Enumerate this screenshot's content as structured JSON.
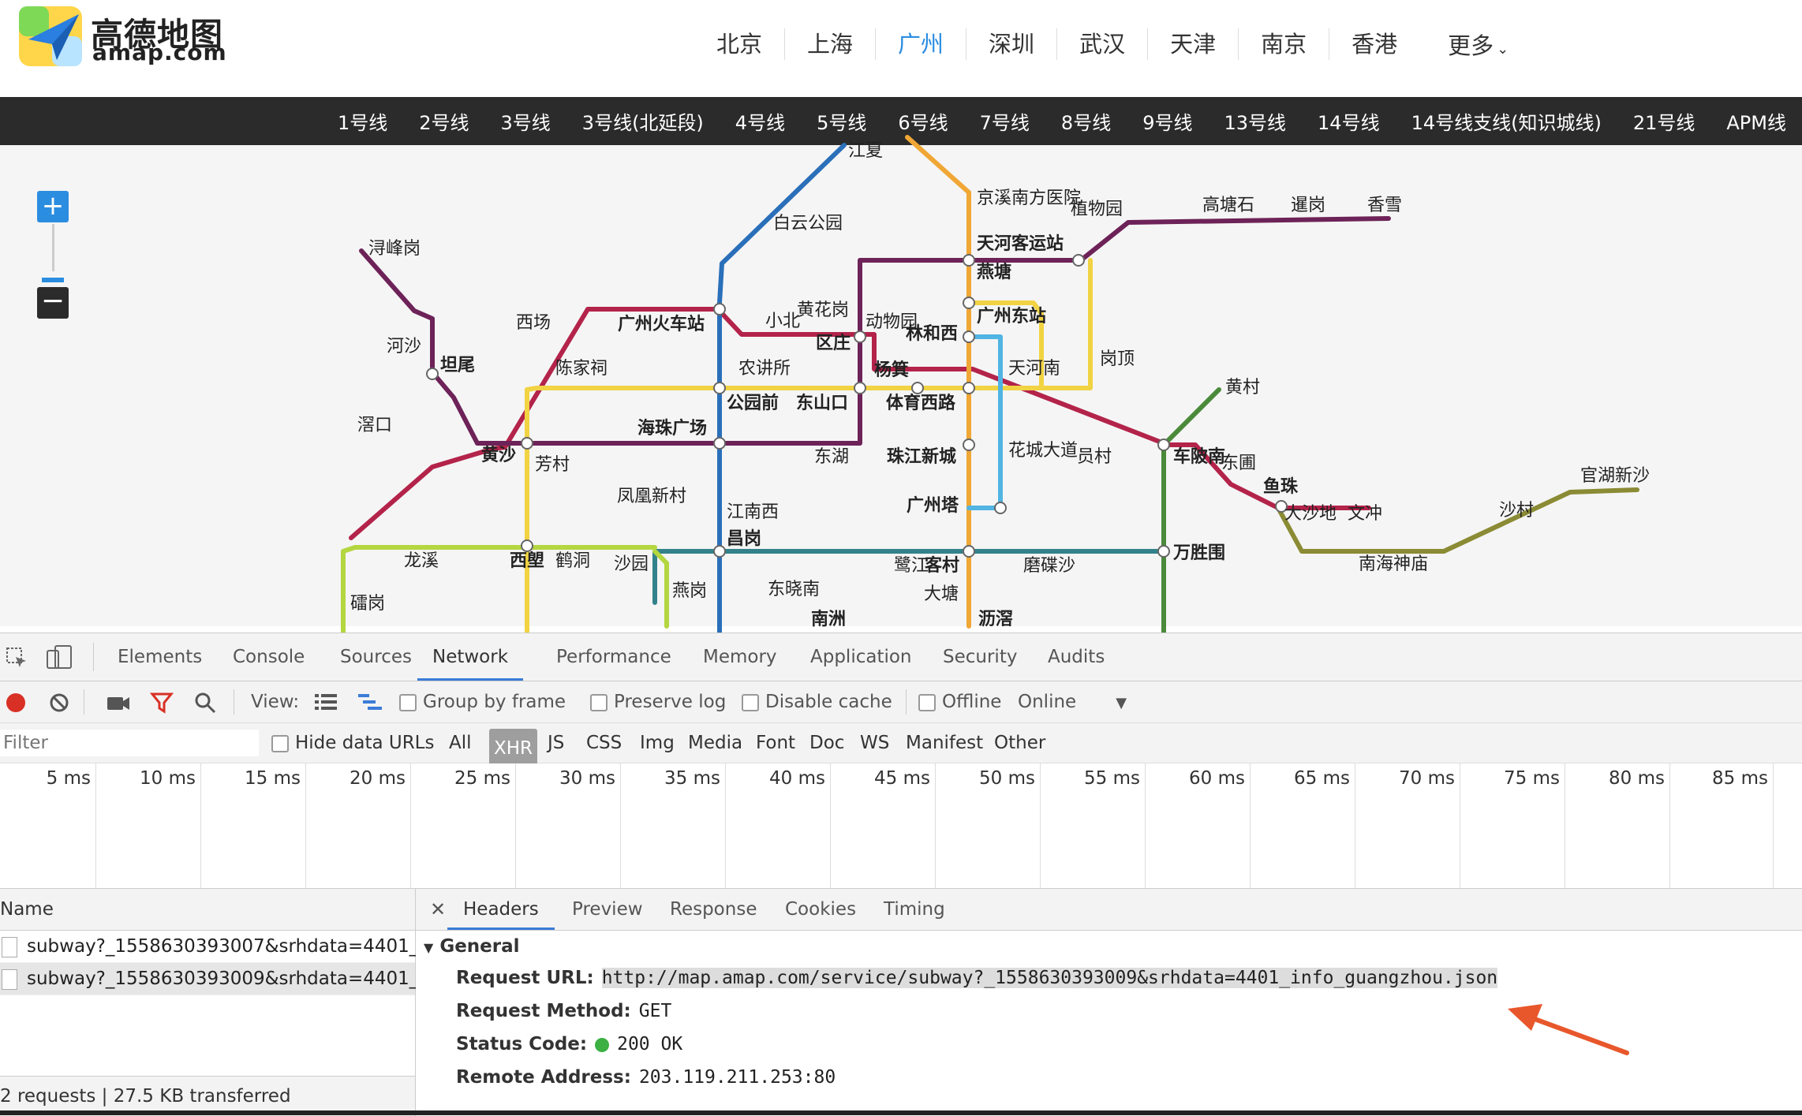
{
  "header": {
    "logo_cn": "高德地图",
    "logo_en": "amap.com",
    "cities": [
      {
        "label": "北京",
        "active": false
      },
      {
        "label": "上海",
        "active": false
      },
      {
        "label": "广州",
        "active": true
      },
      {
        "label": "深圳",
        "active": false
      },
      {
        "label": "武汉",
        "active": false
      },
      {
        "label": "天津",
        "active": false
      },
      {
        "label": "南京",
        "active": false
      },
      {
        "label": "香港",
        "active": false
      }
    ],
    "more_label": "更多",
    "accent_color": "#2b8de0"
  },
  "line_bar": {
    "lines": [
      "1号线",
      "2号线",
      "3号线",
      "3号线(北延段)",
      "4号线",
      "5号线",
      "6号线",
      "7号线",
      "8号线",
      "9号线",
      "13号线",
      "14号线",
      "14号线支线(知识城线)",
      "21号线",
      "APM线"
    ]
  },
  "map": {
    "zoom_in_icon": "plus-icon",
    "zoom_out_icon": "minus-icon",
    "stations": [
      "江夏",
      "京溪南方医院",
      "植物园",
      "高塘石",
      "暹岗",
      "香雪",
      "白云公园",
      "天河客运站",
      "燕塘",
      "浔峰岗",
      "黄花岗",
      "小北",
      "动物园",
      "广州东站",
      "西场",
      "广州火车站",
      "区庄",
      "林和西",
      "河沙",
      "坦尾",
      "陈家祠",
      "农讲所",
      "杨箕",
      "天河南",
      "岗顶",
      "黄村",
      "滘口",
      "公园前",
      "东山口",
      "体育西路",
      "海珠广场",
      "黄沙",
      "芳村",
      "东湖",
      "珠江新城",
      "花城大道",
      "员村",
      "车陂南",
      "东圃",
      "凤凰新村",
      "广州塔",
      "鱼珠",
      "官湖新沙",
      "江南西",
      "大沙地",
      "文冲",
      "沙村",
      "昌岗",
      "龙溪",
      "西塱",
      "鹤洞",
      "沙园",
      "鹭江",
      "客村",
      "磨碟沙",
      "万胜围",
      "南海神庙",
      "燕岗",
      "东晓南",
      "大塘",
      "礌岗",
      "南洲",
      "沥滘"
    ]
  },
  "devtools": {
    "tabs": [
      "Elements",
      "Console",
      "Sources",
      "Network",
      "Performance",
      "Memory",
      "Application",
      "Security",
      "Audits"
    ],
    "active_tab": "Network",
    "toolbar": {
      "view_label": "View:",
      "group_by_frame": "Group by frame",
      "preserve_log": "Preserve log",
      "disable_cache": "Disable cache",
      "offline": "Offline",
      "throttle": "Online"
    },
    "filter": {
      "placeholder": "Filter",
      "hide_data_urls": "Hide data URLs",
      "types": [
        "All",
        "XHR",
        "JS",
        "CSS",
        "Img",
        "Media",
        "Font",
        "Doc",
        "WS",
        "Manifest",
        "Other"
      ],
      "active_type": "XHR"
    },
    "timeline_ticks": [
      "5 ms",
      "10 ms",
      "15 ms",
      "20 ms",
      "25 ms",
      "30 ms",
      "35 ms",
      "40 ms",
      "45 ms",
      "50 ms",
      "55 ms",
      "60 ms",
      "65 ms",
      "70 ms",
      "75 ms",
      "80 ms",
      "85 ms"
    ],
    "requests": {
      "name_header": "Name",
      "rows": [
        {
          "name": "subway?_1558630393007&srhdata=4401_...",
          "selected": false
        },
        {
          "name": "subway?_1558630393009&srhdata=4401_...",
          "selected": true
        }
      ],
      "summary": "2 requests | 27.5 KB transferred"
    },
    "detail": {
      "close_icon": "close-icon",
      "tabs": [
        "Headers",
        "Preview",
        "Response",
        "Cookies",
        "Timing"
      ],
      "active_tab": "Headers",
      "section": "General",
      "fields": [
        {
          "key": "Request URL:",
          "value": "http://map.amap.com/service/subway?_1558630393009&srhdata=4401_info_guangzhou.json"
        },
        {
          "key": "Request Method:",
          "value": "GET"
        },
        {
          "key": "Status Code:",
          "value": "200 OK"
        },
        {
          "key": "Remote Address:",
          "value": "203.119.211.253:80"
        }
      ],
      "status_color": "#3cb043",
      "annotation_color": "#e8572b"
    }
  }
}
